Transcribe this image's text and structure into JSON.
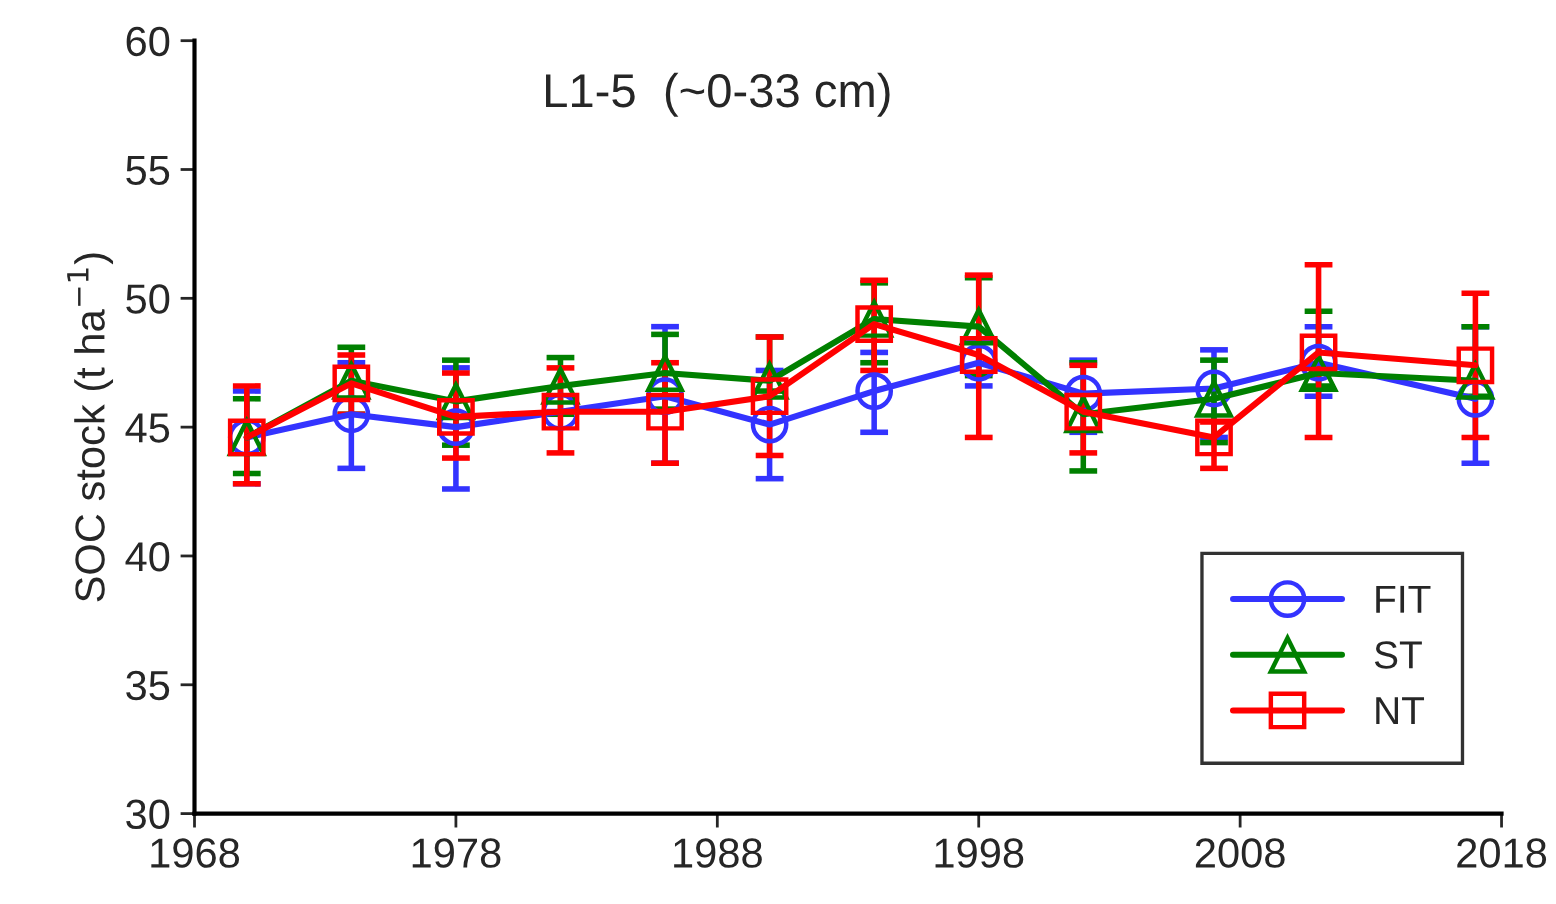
{
  "chart_data": {
    "type": "line",
    "title": "L1-5  (~0-33 cm)",
    "ylabel": "SOC stock (t ha$^{−1}$)",
    "x": [
      1970,
      1974,
      1978,
      1982,
      1986,
      1990,
      1994,
      1998,
      2002,
      2007,
      2011,
      2017
    ],
    "xlim": [
      1968,
      2018
    ],
    "xticks": [
      1968,
      1978,
      1988,
      1998,
      2008,
      2018
    ],
    "ylim": [
      30,
      60
    ],
    "yticks": [
      30,
      35,
      40,
      45,
      50,
      55,
      60
    ],
    "grid": false,
    "legend": "bottom right",
    "line_style": "solid",
    "series": [
      {
        "name": "FIT",
        "color": "#3333ff",
        "marker": "circle",
        "values": [
          44.6,
          45.5,
          45.0,
          45.6,
          46.2,
          45.1,
          46.4,
          47.5,
          46.3,
          46.5,
          47.5,
          46.1
        ],
        "errors": [
          [
            42.8,
            46.4
          ],
          [
            43.4,
            47.5
          ],
          [
            42.6,
            47.3
          ],
          null,
          [
            43.6,
            48.9
          ],
          [
            43.0,
            47.2
          ],
          [
            44.8,
            47.9
          ],
          [
            46.6,
            48.4
          ],
          [
            44.8,
            47.6
          ],
          [
            44.6,
            48.0
          ],
          [
            46.2,
            48.9
          ],
          [
            43.6,
            48.9
          ]
        ]
      },
      {
        "name": "ST",
        "color": "#008000",
        "marker": "triangle",
        "values": [
          44.6,
          46.8,
          46.0,
          46.6,
          47.1,
          46.8,
          49.2,
          48.9,
          45.5,
          46.1,
          47.1,
          46.8
        ],
        "errors": [
          [
            43.2,
            46.1
          ],
          [
            45.5,
            48.1
          ],
          [
            44.3,
            47.6
          ],
          [
            45.5,
            47.7
          ],
          [
            45.7,
            48.6
          ],
          [
            46.4,
            48.5
          ],
          [
            47.5,
            50.6
          ],
          [
            47.0,
            50.8
          ],
          [
            43.3,
            47.5
          ],
          [
            44.4,
            47.6
          ],
          [
            46.6,
            49.5
          ],
          [
            46.2,
            48.9
          ]
        ]
      },
      {
        "name": "NT",
        "color": "#ff0000",
        "marker": "square",
        "values": [
          44.6,
          46.7,
          45.4,
          45.6,
          45.6,
          46.2,
          49.0,
          47.8,
          45.6,
          44.6,
          47.9,
          47.4
        ],
        "errors": [
          [
            42.8,
            46.6
          ],
          [
            45.5,
            47.8
          ],
          [
            43.8,
            47.1
          ],
          [
            44.0,
            47.3
          ],
          [
            43.6,
            47.5
          ],
          [
            43.9,
            48.5
          ],
          [
            47.2,
            50.7
          ],
          [
            44.6,
            50.9
          ],
          [
            44.0,
            47.4
          ],
          [
            43.4,
            45.2
          ],
          [
            44.6,
            51.3
          ],
          [
            44.6,
            50.2
          ]
        ]
      }
    ]
  }
}
